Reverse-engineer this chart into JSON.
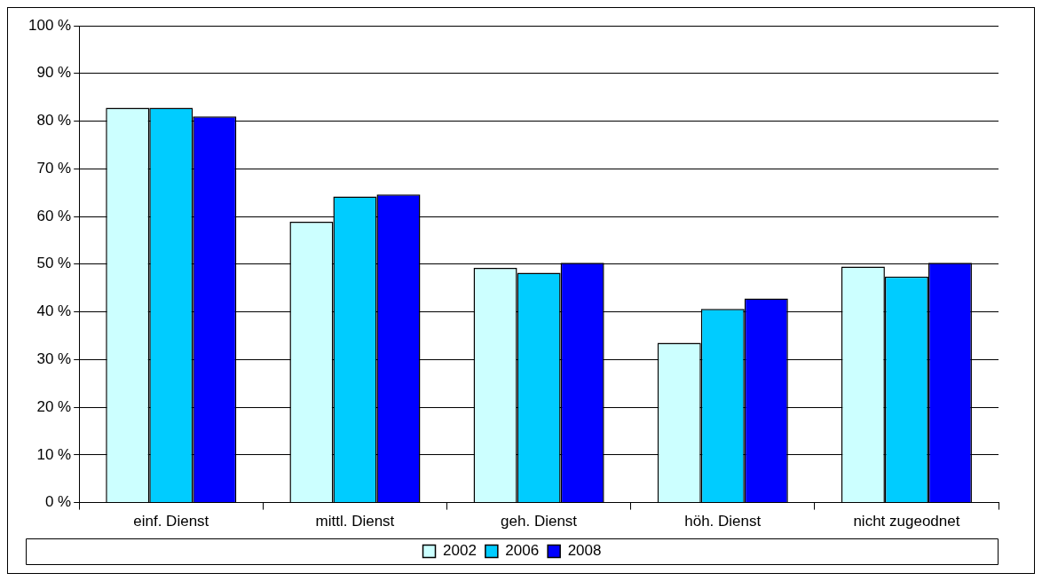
{
  "chart_data": {
    "type": "bar",
    "categories": [
      "einf. Dienst",
      "mittl. Dienst",
      "geh. Dienst",
      "höh. Dienst",
      "nicht zugeodnet"
    ],
    "series": [
      {
        "name": "2002",
        "color": "#ccffff",
        "values": [
          82.8,
          58.9,
          49.2,
          33.5,
          49.5
        ]
      },
      {
        "name": "2006",
        "color": "#00ccff",
        "values": [
          82.8,
          64.2,
          48.2,
          40.6,
          47.4
        ]
      },
      {
        "name": "2008",
        "color": "#0000ff",
        "values": [
          81.0,
          64.6,
          50.3,
          42.8,
          50.3
        ]
      }
    ],
    "ylim": [
      0,
      100
    ],
    "yticks": [
      {
        "value": 0,
        "label": "0 %"
      },
      {
        "value": 10,
        "label": "10 %"
      },
      {
        "value": 20,
        "label": "20 %"
      },
      {
        "value": 30,
        "label": "30 %"
      },
      {
        "value": 40,
        "label": "40 %"
      },
      {
        "value": 50,
        "label": "50 %"
      },
      {
        "value": 60,
        "label": "60 %"
      },
      {
        "value": 70,
        "label": "70 %"
      },
      {
        "value": 80,
        "label": "80 %"
      },
      {
        "value": 90,
        "label": "90 %"
      },
      {
        "value": 100,
        "label": "100 %"
      }
    ],
    "grid": "y",
    "legend": "bottom"
  }
}
